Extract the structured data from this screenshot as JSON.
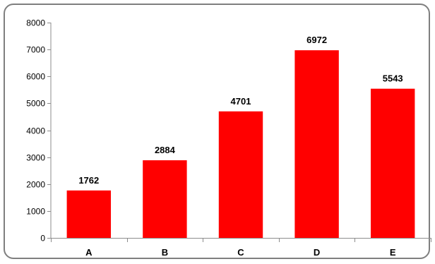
{
  "chart_data": {
    "type": "bar",
    "categories": [
      "A",
      "B",
      "C",
      "D",
      "E"
    ],
    "values": [
      1762,
      2884,
      4701,
      6972,
      5543
    ],
    "ylim": [
      0,
      8000
    ],
    "yticks": [
      0,
      1000,
      2000,
      3000,
      4000,
      5000,
      6000,
      7000,
      8000
    ],
    "title": "",
    "xlabel": "",
    "ylabel": "",
    "data_labels": true,
    "grid": false,
    "legend": "none",
    "colors": {
      "bar": "#ff0000",
      "axis": "#8c8c8c",
      "frame": "#7f7f7f"
    }
  }
}
